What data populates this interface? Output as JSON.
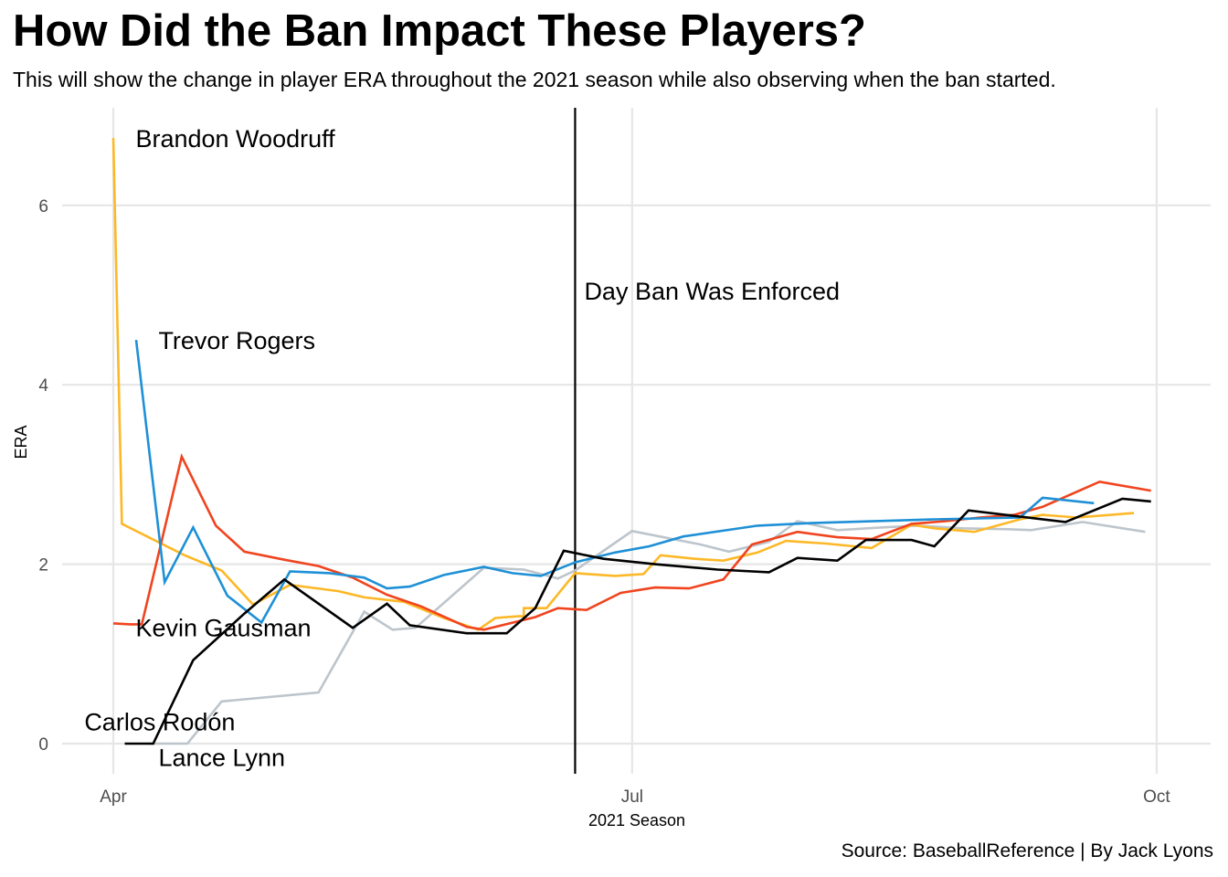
{
  "header": {
    "title": "How Did the Ban Impact These Players?",
    "subtitle": "This will show the change in player ERA throughout the 2021 season while also observing when the ban started."
  },
  "caption": "Source: BaseballReference | By Jack Lyons",
  "chart_data": {
    "type": "line",
    "title": "How Did the Ban Impact These Players?",
    "subtitle": "This will show the change in player ERA throughout the 2021 season while also observing when the ban started.",
    "xlabel": "2021 Season",
    "ylabel": "ERA",
    "x_unit": "days since Apr 1, 2021",
    "xlim": [
      -9,
      191
    ],
    "ylim": [
      -0.33,
      7.0
    ],
    "x_ticks": [
      {
        "label": "Apr",
        "value": 0
      },
      {
        "label": "Jul",
        "value": 91
      },
      {
        "label": "Oct",
        "value": 183
      }
    ],
    "y_ticks": [
      0,
      2,
      4,
      6
    ],
    "grid": true,
    "legend": "none (direct labels)",
    "annotation": {
      "label": "Day Ban Was Enforced",
      "x": 81,
      "date": "Jun 21"
    },
    "series": [
      {
        "name": "Brandon Woodruff",
        "color": "#FDB827",
        "label_at": [
          2,
          6.75
        ],
        "points": [
          [
            0,
            6.75
          ],
          [
            1.5,
            2.45
          ],
          [
            12.5,
            2.1
          ],
          [
            19,
            1.93
          ],
          [
            24.5,
            1.55
          ],
          [
            31,
            1.77
          ],
          [
            39.5,
            1.7
          ],
          [
            44,
            1.63
          ],
          [
            51,
            1.58
          ],
          [
            58,
            1.4
          ],
          [
            64,
            1.27
          ],
          [
            72,
            1.42
          ],
          [
            71,
            1.42
          ],
          [
            67,
            1.4
          ],
          [
            72,
            1.51
          ],
          [
            76,
            1.51
          ],
          [
            81,
            1.9
          ],
          [
            88,
            1.87
          ],
          [
            93,
            1.89
          ],
          [
            96,
            2.1
          ],
          [
            102,
            2.06
          ],
          [
            107,
            2.04
          ],
          [
            113,
            2.13
          ],
          [
            118,
            2.26
          ],
          [
            125,
            2.23
          ],
          [
            133,
            2.18
          ],
          [
            140,
            2.44
          ],
          [
            144,
            2.4
          ],
          [
            151,
            2.36
          ],
          [
            159,
            2.5
          ],
          [
            163,
            2.55
          ],
          [
            169,
            2.52
          ],
          [
            179,
            2.57
          ]
        ]
      },
      {
        "name": "Trevor Rogers",
        "color": "#1E90D6",
        "label_at": [
          6,
          4.5
        ],
        "points": [
          [
            4,
            4.5
          ],
          [
            9,
            1.8
          ],
          [
            14,
            2.41
          ],
          [
            20,
            1.65
          ],
          [
            26,
            1.35
          ],
          [
            31,
            1.92
          ],
          [
            38,
            1.9
          ],
          [
            44,
            1.85
          ],
          [
            48,
            1.73
          ],
          [
            52,
            1.75
          ],
          [
            58,
            1.88
          ],
          [
            65,
            1.97
          ],
          [
            70,
            1.9
          ],
          [
            75,
            1.87
          ],
          [
            81,
            2.02
          ],
          [
            88,
            2.13
          ],
          [
            94,
            2.2
          ],
          [
            100,
            2.31
          ],
          [
            113,
            2.43
          ],
          [
            123,
            2.46
          ],
          [
            144,
            2.5
          ],
          [
            159,
            2.52
          ],
          [
            163,
            2.74
          ],
          [
            172,
            2.68
          ]
        ]
      },
      {
        "name": "Kevin Gausman",
        "color": "#F0441F",
        "label_at": [
          2,
          1.3
        ],
        "points": [
          [
            0,
            1.34
          ],
          [
            3,
            1.33
          ],
          [
            5,
            1.33
          ],
          [
            12,
            3.2
          ],
          [
            18,
            2.43
          ],
          [
            23,
            2.14
          ],
          [
            30,
            2.05
          ],
          [
            36,
            1.98
          ],
          [
            42,
            1.85
          ],
          [
            48,
            1.66
          ],
          [
            54,
            1.53
          ],
          [
            62,
            1.3
          ],
          [
            65,
            1.27
          ],
          [
            74,
            1.41
          ],
          [
            78,
            1.51
          ],
          [
            83,
            1.49
          ],
          [
            89,
            1.68
          ],
          [
            95,
            1.74
          ],
          [
            101,
            1.73
          ],
          [
            107,
            1.83
          ],
          [
            112,
            2.22
          ],
          [
            120,
            2.36
          ],
          [
            127,
            2.3
          ],
          [
            133,
            2.28
          ],
          [
            140,
            2.45
          ],
          [
            146,
            2.48
          ],
          [
            152,
            2.52
          ],
          [
            158,
            2.55
          ],
          [
            163,
            2.64
          ],
          [
            173,
            2.92
          ],
          [
            182,
            2.82
          ]
        ]
      },
      {
        "name": "Lance Lynn",
        "color": "#BDC5CC",
        "label_at": [
          6,
          -0.15
        ],
        "points": [
          [
            6,
            0.0
          ],
          [
            13,
            0.0
          ],
          [
            19,
            0.47
          ],
          [
            36,
            0.57
          ],
          [
            44,
            1.47
          ],
          [
            49,
            1.27
          ],
          [
            53,
            1.29
          ],
          [
            65,
            1.96
          ],
          [
            72,
            1.94
          ],
          [
            78,
            1.84
          ],
          [
            81,
            1.93
          ],
          [
            91,
            2.37
          ],
          [
            103,
            2.22
          ],
          [
            108,
            2.14
          ],
          [
            115,
            2.25
          ],
          [
            120,
            2.48
          ],
          [
            127,
            2.38
          ],
          [
            135,
            2.41
          ],
          [
            141,
            2.43
          ],
          [
            149,
            2.4
          ],
          [
            157,
            2.39
          ],
          [
            161,
            2.38
          ],
          [
            170,
            2.47
          ],
          [
            181,
            2.36
          ]
        ]
      },
      {
        "name": "Carlos Rodón",
        "color": "#000000",
        "label_at": [
          -7,
          0.25
        ],
        "points": [
          [
            2,
            0.0
          ],
          [
            7,
            0.0
          ],
          [
            14,
            0.93
          ],
          [
            23,
            1.45
          ],
          [
            30,
            1.83
          ],
          [
            42,
            1.29
          ],
          [
            48,
            1.56
          ],
          [
            52,
            1.32
          ],
          [
            62,
            1.23
          ],
          [
            69,
            1.23
          ],
          [
            74,
            1.51
          ],
          [
            79,
            2.15
          ],
          [
            86,
            2.06
          ],
          [
            95,
            2.0
          ],
          [
            106,
            1.94
          ],
          [
            115,
            1.91
          ],
          [
            120,
            2.07
          ],
          [
            127,
            2.04
          ],
          [
            132,
            2.27
          ],
          [
            140,
            2.27
          ],
          [
            144,
            2.2
          ],
          [
            150,
            2.6
          ],
          [
            167,
            2.47
          ],
          [
            177,
            2.73
          ],
          [
            182,
            2.7
          ]
        ]
      }
    ]
  }
}
